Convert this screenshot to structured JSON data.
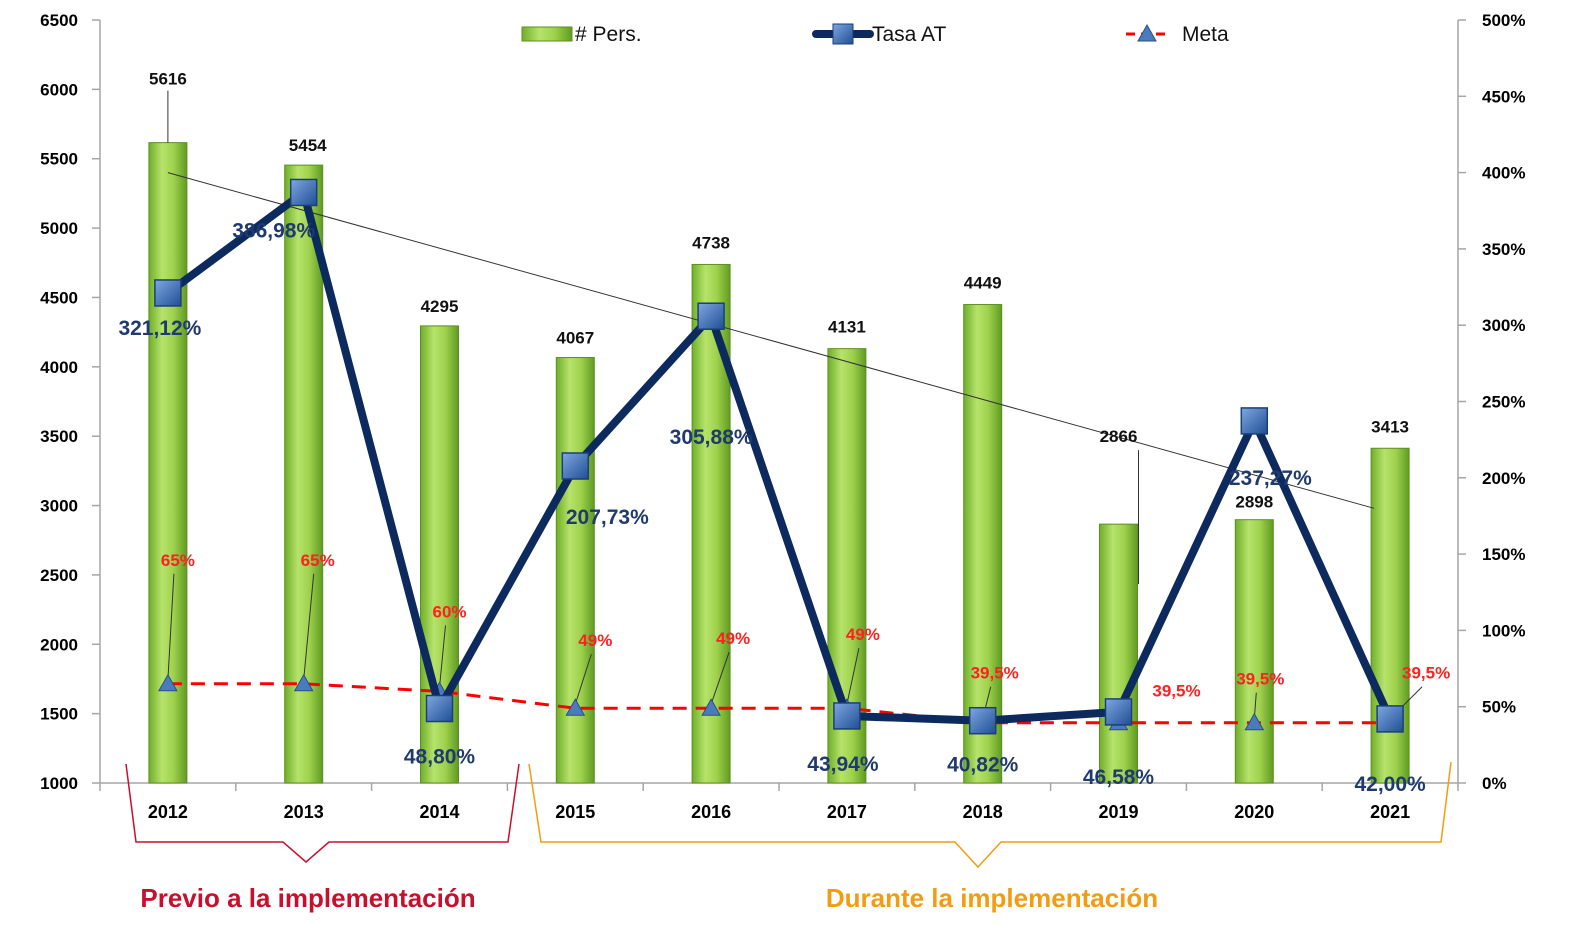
{
  "chart_data": {
    "type": "bar",
    "categories": [
      "2012",
      "2013",
      "2014",
      "2015",
      "2016",
      "2017",
      "2018",
      "2019",
      "2020",
      "2021"
    ],
    "y_left": {
      "min": 1000,
      "max": 6500,
      "ticks": [
        "1000",
        "1500",
        "2000",
        "2500",
        "3000",
        "3500",
        "4000",
        "4500",
        "5000",
        "5500",
        "6000",
        "6500"
      ]
    },
    "y_right": {
      "min": 0,
      "max": 500,
      "ticks": [
        "0%",
        "50%",
        "100%",
        "150%",
        "200%",
        "250%",
        "300%",
        "350%",
        "400%",
        "450%",
        "500%"
      ]
    },
    "legend": {
      "placement": "top",
      "items": [
        "# Pers.",
        "Tasa AT",
        "Meta"
      ]
    },
    "series": [
      {
        "name": "# Pers.",
        "type": "bar",
        "axis": "left",
        "values": [
          5616,
          5454,
          4295,
          4067,
          4738,
          4131,
          4449,
          2866,
          2898,
          3413
        ],
        "labels": [
          "5616",
          "5454",
          "4295",
          "4067",
          "4738",
          "4131",
          "4449",
          "2866",
          "2898",
          "3413"
        ]
      },
      {
        "name": "Tasa AT",
        "type": "line",
        "axis": "right",
        "values": [
          321.12,
          386.98,
          48.8,
          207.73,
          305.88,
          43.94,
          40.82,
          46.58,
          237.27,
          42.0
        ],
        "labels": [
          "321,12%",
          "386,98%",
          "48,80%",
          "207,73%",
          "305,88%",
          "43,94%",
          "40,82%",
          "46,58%",
          "237,27%",
          "42,00%"
        ]
      },
      {
        "name": "Meta",
        "type": "line",
        "axis": "right",
        "values": [
          65,
          65,
          60,
          49,
          49,
          49,
          39.5,
          39.5,
          39.5,
          39.5
        ],
        "labels": [
          "65%",
          "65%",
          "60%",
          "49%",
          "49%",
          "49%",
          "39,5%",
          "39,5%",
          "39,5%",
          "39,5%"
        ]
      }
    ],
    "trendline": {
      "series": "# Pers.",
      "from_value": 5400,
      "to_value": 2980
    },
    "grid": false,
    "annotations": [
      {
        "text": "Previo a la implementación",
        "color": "#c8102e",
        "span": [
          "2012",
          "2014"
        ]
      },
      {
        "text": "Durante la implementación",
        "color": "#f39c12",
        "span": [
          "2015",
          "2021"
        ]
      }
    ],
    "colors": {
      "bar": "#8cc63f",
      "tasa": "#0d2a5e",
      "tasa_marker": "#3a6db5",
      "meta": "#ff0000",
      "meta_marker": "#4a7bbf",
      "meta_label": "#ff2020",
      "tasa_label": "#1f3a6e"
    }
  }
}
